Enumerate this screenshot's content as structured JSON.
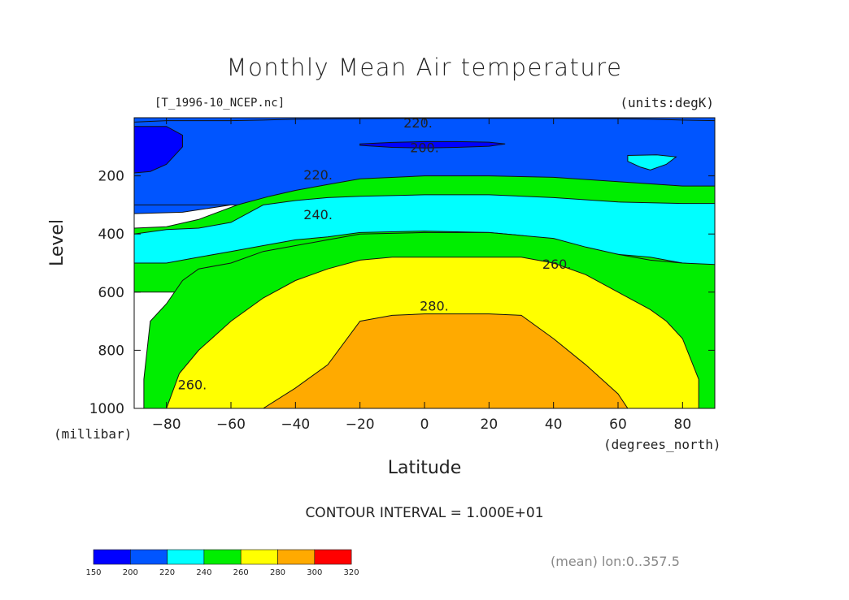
{
  "chart_data": {
    "type": "contour",
    "title": "Monthly Mean Air temperature",
    "source_file": "[T_1996-10_NCEP.nc]",
    "units": "(units:degK)",
    "xlabel": "Latitude",
    "x_units": "(degrees_north)",
    "ylabel": "Level",
    "y_units": "(millibar)",
    "xlim": [
      -90,
      90
    ],
    "ylim": [
      0,
      1000
    ],
    "y_inverted": true,
    "x_ticks": [
      -80,
      -60,
      -40,
      -20,
      0,
      20,
      40,
      60,
      80
    ],
    "x_tick_labels": [
      "−80",
      "−60",
      "−40",
      "−20",
      "0",
      "20",
      "40",
      "60",
      "80"
    ],
    "y_ticks": [
      200,
      400,
      600,
      800,
      1000
    ],
    "y_tick_labels": [
      "200",
      "400",
      "600",
      "800",
      "1000"
    ],
    "contour_interval": "CONTOUR INTERVAL = 1.000E+01",
    "levels": [
      150,
      200,
      220,
      240,
      260,
      280,
      300,
      320
    ],
    "fill_colors": [
      "#0000ff",
      "#0055ff",
      "#00ffff",
      "#00ee00",
      "#ffff00",
      "#ffaa00",
      "#ff0000"
    ],
    "contour_labels": [
      {
        "text": "220.",
        "x": -2,
        "y": 20
      },
      {
        "text": "200.",
        "x": 0,
        "y": 105
      },
      {
        "text": "220.",
        "x": -33,
        "y": 198
      },
      {
        "text": "240.",
        "x": -33,
        "y": 335
      },
      {
        "text": "260.",
        "x": 41,
        "y": 505
      },
      {
        "text": "280.",
        "x": 3,
        "y": 650
      },
      {
        "text": "260.",
        "x": -72,
        "y": 920
      }
    ],
    "regions": [
      {
        "level": 220,
        "points": [
          [
            -90,
            0
          ],
          [
            90,
            0
          ],
          [
            90,
            300
          ],
          [
            -90,
            300
          ]
        ]
      },
      {
        "level": 200,
        "points": [
          [
            -90,
            0
          ],
          [
            90,
            0
          ],
          [
            90,
            290
          ],
          [
            80,
            285
          ],
          [
            60,
            280
          ],
          [
            40,
            275
          ],
          [
            20,
            270
          ],
          [
            0,
            265
          ],
          [
            -20,
            262
          ],
          [
            -40,
            265
          ],
          [
            -50,
            275
          ],
          [
            -60,
            300
          ],
          [
            -75,
            325
          ],
          [
            -90,
            330
          ]
        ]
      },
      {
        "level": 200,
        "points": [
          [
            -90,
            15
          ],
          [
            -80,
            10
          ],
          [
            -70,
            10
          ],
          [
            -60,
            10
          ],
          [
            -50,
            8
          ],
          [
            -40,
            5
          ],
          [
            -20,
            3
          ],
          [
            0,
            2
          ],
          [
            20,
            2
          ],
          [
            40,
            2
          ],
          [
            60,
            3
          ],
          [
            70,
            5
          ],
          [
            80,
            8
          ],
          [
            90,
            10
          ],
          [
            90,
            300
          ],
          [
            -90,
            300
          ]
        ]
      },
      {
        "level": 240,
        "points": [
          [
            -90,
            300
          ],
          [
            -90,
            380
          ],
          [
            -80,
            375
          ],
          [
            -70,
            350
          ],
          [
            -58,
            300
          ],
          [
            -48,
            270
          ],
          [
            -40,
            250
          ],
          [
            -30,
            230
          ],
          [
            -20,
            210
          ],
          [
            0,
            200
          ],
          [
            20,
            200
          ],
          [
            40,
            205
          ],
          [
            60,
            220
          ],
          [
            80,
            235
          ],
          [
            90,
            235
          ],
          [
            90,
            600
          ],
          [
            -90,
            600
          ]
        ]
      },
      {
        "level": 220,
        "points": [
          [
            -90,
            330
          ],
          [
            -90,
            400
          ],
          [
            -80,
            385
          ],
          [
            -70,
            380
          ],
          [
            -60,
            360
          ],
          [
            -50,
            300
          ],
          [
            -40,
            285
          ],
          [
            -30,
            275
          ],
          [
            -20,
            270
          ],
          [
            0,
            265
          ],
          [
            20,
            265
          ],
          [
            40,
            275
          ],
          [
            60,
            290
          ],
          [
            80,
            295
          ],
          [
            90,
            295
          ],
          [
            90,
            510
          ],
          [
            80,
            500
          ],
          [
            70,
            480
          ],
          [
            60,
            470
          ],
          [
            50,
            450
          ],
          [
            40,
            420
          ],
          [
            30,
            405
          ],
          [
            20,
            395
          ],
          [
            0,
            390
          ],
          [
            -20,
            395
          ],
          [
            -30,
            410
          ],
          [
            -40,
            420
          ],
          [
            -50,
            440
          ],
          [
            -60,
            460
          ],
          [
            -70,
            480
          ],
          [
            -80,
            500
          ],
          [
            -90,
            500
          ]
        ]
      },
      {
        "level": 240,
        "points": [
          [
            -87,
            1000
          ],
          [
            -87,
            900
          ],
          [
            -85,
            700
          ],
          [
            -80,
            640
          ],
          [
            -75,
            560
          ],
          [
            -70,
            520
          ],
          [
            -60,
            500
          ],
          [
            -50,
            460
          ],
          [
            -40,
            440
          ],
          [
            -30,
            420
          ],
          [
            -20,
            400
          ],
          [
            0,
            395
          ],
          [
            20,
            395
          ],
          [
            40,
            415
          ],
          [
            50,
            445
          ],
          [
            60,
            470
          ],
          [
            70,
            490
          ],
          [
            80,
            500
          ],
          [
            90,
            505
          ],
          [
            90,
            1000
          ]
        ]
      },
      {
        "level": 260,
        "points": [
          [
            -80,
            1000
          ],
          [
            -76,
            880
          ],
          [
            -70,
            800
          ],
          [
            -60,
            700
          ],
          [
            -50,
            620
          ],
          [
            -40,
            560
          ],
          [
            -30,
            520
          ],
          [
            -20,
            490
          ],
          [
            -10,
            480
          ],
          [
            0,
            480
          ],
          [
            20,
            480
          ],
          [
            30,
            480
          ],
          [
            40,
            500
          ],
          [
            50,
            540
          ],
          [
            60,
            600
          ],
          [
            70,
            660
          ],
          [
            75,
            700
          ],
          [
            80,
            760
          ],
          [
            85,
            900
          ],
          [
            85,
            1000
          ]
        ]
      },
      {
        "level": 280,
        "points": [
          [
            -50,
            1000
          ],
          [
            -40,
            930
          ],
          [
            -30,
            850
          ],
          [
            -20,
            700
          ],
          [
            -10,
            680
          ],
          [
            0,
            675
          ],
          [
            10,
            675
          ],
          [
            20,
            675
          ],
          [
            30,
            680
          ],
          [
            40,
            760
          ],
          [
            50,
            850
          ],
          [
            60,
            950
          ],
          [
            63,
            1000
          ]
        ]
      },
      {
        "level": 150,
        "points": [
          [
            -90,
            30
          ],
          [
            -80,
            30
          ],
          [
            -75,
            60
          ],
          [
            -75,
            100
          ],
          [
            -80,
            160
          ],
          [
            -85,
            185
          ],
          [
            -90,
            190
          ]
        ]
      },
      {
        "level": 150,
        "points": [
          [
            -20,
            90
          ],
          [
            -10,
            85
          ],
          [
            0,
            82
          ],
          [
            10,
            82
          ],
          [
            20,
            84
          ],
          [
            25,
            90
          ],
          [
            20,
            98
          ],
          [
            10,
            102
          ],
          [
            0,
            104
          ],
          [
            -10,
            102
          ],
          [
            -20,
            95
          ]
        ]
      },
      {
        "level": 220,
        "points": [
          [
            63,
            130
          ],
          [
            72,
            128
          ],
          [
            78,
            135
          ],
          [
            75,
            160
          ],
          [
            70,
            180
          ],
          [
            67,
            170
          ],
          [
            63,
            150
          ]
        ]
      }
    ],
    "colorbar": {
      "labels": [
        "150",
        "200",
        "220",
        "240",
        "260",
        "280",
        "300",
        "320"
      ]
    }
  },
  "footer": {
    "mean_note": "(mean) lon:0..357.5"
  }
}
